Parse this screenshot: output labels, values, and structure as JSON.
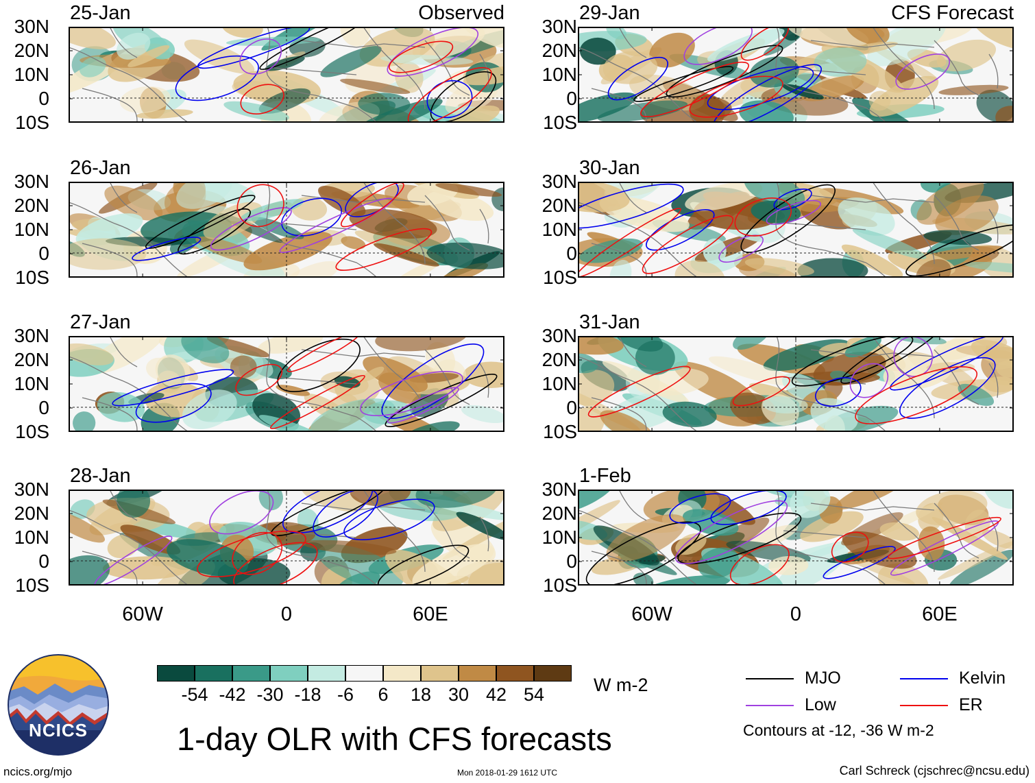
{
  "colors": {
    "mjo": "#000000",
    "kelvin": "#0000ee",
    "low": "#a040e0",
    "er": "#ee1010",
    "map_lines": "#7a7a7a",
    "colorbar": [
      "#0a4a3e",
      "#19705f",
      "#3a9a88",
      "#7fcfbf",
      "#c4ebe2",
      "#f6f6f6",
      "#f4e8c8",
      "#dfc48c",
      "#c08a45",
      "#8f5520",
      "#5e3a13"
    ]
  },
  "left_header_tag": "Observed",
  "right_header_tag": "CFS Forecast",
  "lat_labels": [
    "30N",
    "20N",
    "10N",
    "0",
    "10S"
  ],
  "lon_labels": [
    "60W",
    "0",
    "60E"
  ],
  "panels": [
    {
      "date": "25-Jan"
    },
    {
      "date": "26-Jan"
    },
    {
      "date": "27-Jan"
    },
    {
      "date": "28-Jan"
    },
    {
      "date": "29-Jan"
    },
    {
      "date": "30-Jan"
    },
    {
      "date": "31-Jan"
    },
    {
      "date": "1-Feb"
    }
  ],
  "colorbar": {
    "ticks": [
      "-54",
      "-42",
      "-30",
      "-18",
      "-6",
      "6",
      "18",
      "30",
      "42",
      "54"
    ],
    "units": "W m-2"
  },
  "title": "1-day OLR with CFS forecasts",
  "legend": [
    {
      "label": "MJO",
      "color_key": "mjo"
    },
    {
      "label": "Kelvin",
      "color_key": "kelvin"
    },
    {
      "label": "Low",
      "color_key": "low"
    },
    {
      "label": "ER",
      "color_key": "er"
    }
  ],
  "contour_note": "Contours at -12, -36 W m-2",
  "footer": {
    "url": "ncics.org/mjo",
    "timestamp": "Mon 2018-01-29 1612 UTC",
    "author": "Carl Schreck (cjschrec@ncsu.edu)"
  },
  "logo": {
    "text": "NCICS",
    "icon": "ncics-logo-icon"
  }
}
